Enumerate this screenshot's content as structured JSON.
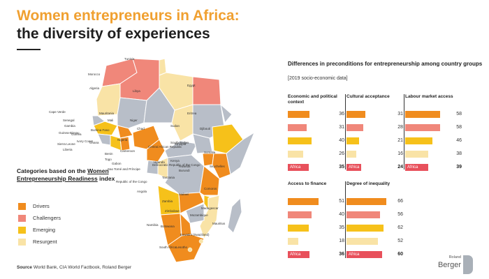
{
  "title_line1": "Women entrepreneurs in Africa:",
  "title_line2": "the diversity of experiences",
  "legend": {
    "title_pre": "Categories based on the ",
    "title_link": "Women Entrepreneurship Readiness",
    "title_post": " index",
    "items": [
      {
        "label": "Drivers",
        "color": "#f08c1e"
      },
      {
        "label": "Challengers",
        "color": "#f0877a"
      },
      {
        "label": "Emerging",
        "color": "#f6c11a"
      },
      {
        "label": "Resurgent",
        "color": "#f9e3a6"
      }
    ]
  },
  "source": {
    "label": "Source",
    "text": " World Bank, CIA World Factbook, Roland Berger"
  },
  "logo": {
    "top": "Roland",
    "bottom": "Berger"
  },
  "map_labels": [
    "Tunisia",
    "Morocco",
    "Algeria",
    "Libya",
    "Egypt",
    "Cape Verde",
    "Mauritania",
    "Mali",
    "Niger",
    "Chad",
    "Sudan",
    "Eritrea",
    "Senegal",
    "Gambia",
    "Guinea-Bissau",
    "Guinea",
    "Burkina Faso",
    "Djibouti",
    "Sierra Leone",
    "Liberia",
    "Ivory Coast",
    "Ghana",
    "Nigeria",
    "Ethiopia",
    "Central African Republic",
    "South Sudan",
    "Somalia",
    "Cameroon",
    "Benin",
    "Togo",
    "Gabon",
    "Sao Tomé and Príncipe",
    "Uganda",
    "Kenya",
    "Democratic Republic of the Congo",
    "Rwanda",
    "Burundi",
    "Republic of the Congo",
    "Seychelles",
    "Tanzania",
    "Comoros",
    "Angola",
    "Malawi",
    "Zambia",
    "Madagascar",
    "Mozambique",
    "Zimbabwe",
    "Mauritius",
    "Namibia",
    "Botswana",
    "Eswatini (Swaziland)",
    "South Africa",
    "Lesotho"
  ],
  "right": {
    "heading": "Differences in preconditions for entrepreneurship among country groups",
    "subheading": "[2019 socio-economic data]",
    "total_label": "Africa"
  },
  "chart_data": {
    "type": "bar",
    "title": "Differences in preconditions for entrepreneurship among country groups",
    "subtitle": "[2019 socio-economic data]",
    "categories": [
      "Drivers",
      "Challengers",
      "Emerging",
      "Resurgent",
      "Africa"
    ],
    "series": [
      {
        "name": "Economic and political context",
        "values": [
          36,
          31,
          40,
          26,
          35
        ]
      },
      {
        "name": "Cultural acceptance",
        "values": [
          31,
          28,
          21,
          16,
          24
        ]
      },
      {
        "name": "Labour market access",
        "values": [
          58,
          58,
          46,
          38,
          39
        ]
      },
      {
        "name": "Access to finance",
        "values": [
          51,
          40,
          35,
          18,
          36
        ]
      },
      {
        "name": "Degree of inequality",
        "values": [
          66,
          56,
          62,
          52,
          60
        ]
      }
    ],
    "colors": [
      "#f08c1e",
      "#f0877a",
      "#f6c11a",
      "#f9e3a6",
      "#e8505b"
    ]
  }
}
